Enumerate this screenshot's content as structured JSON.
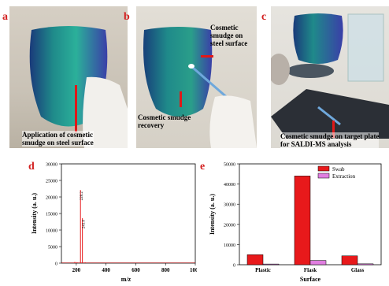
{
  "panels": {
    "a": {
      "label": "a",
      "caption_line1": "Application of cosmetic",
      "caption_line2": "smudge on steel surface"
    },
    "b": {
      "label": "b",
      "caption_top_line1": "Cosmetic",
      "caption_top_line2": "smudge on",
      "caption_top_line3": "steel surface",
      "caption_bottom_line1": "Cosmetic smudge",
      "caption_bottom_line2": "recovery"
    },
    "c": {
      "label": "c",
      "caption_line1": "Cosmetic smudge on target plate",
      "caption_line2": "for SALDI-MS analysis"
    },
    "d": {
      "label": "d"
    },
    "e": {
      "label": "e"
    }
  },
  "colors": {
    "label_red": "#d32020",
    "swab": "#e8191b",
    "extraction": "#e07ee0",
    "steel_a": "#1f8a8a",
    "steel_b": "#3a3fa8"
  },
  "chart_data": [
    {
      "type": "line",
      "panel": "d",
      "xlabel": "m/z",
      "ylabel": "Intensity (a. u.)",
      "xlim": [
        100,
        1000
      ],
      "ylim": [
        0,
        30000
      ],
      "xticks": [
        "200",
        "400",
        "600",
        "800",
        "1000"
      ],
      "yticks": [
        "0",
        "5000",
        "10000",
        "15000",
        "20000",
        "25000",
        "30000"
      ],
      "peaks": [
        {
          "x": 228.2,
          "y": 22100,
          "label": "228.2"
        },
        {
          "x": 241.0,
          "y": 13600,
          "label": "241.0"
        },
        {
          "x": 190,
          "y": 400
        },
        {
          "x": 205,
          "y": 300
        },
        {
          "x": 260,
          "y": 250
        }
      ],
      "series_color": "#e8191b"
    },
    {
      "type": "bar",
      "panel": "e",
      "xlabel": "Surface",
      "ylabel": "Intensity (a. u.)",
      "categories": [
        "Plastic",
        "Flask",
        "Glass"
      ],
      "ylim": [
        0,
        50000
      ],
      "yticks": [
        "0",
        "10000",
        "20000",
        "30000",
        "40000",
        "50000"
      ],
      "series": [
        {
          "name": "Swab",
          "values": [
            5000,
            44000,
            4400
          ],
          "color": "#e8191b"
        },
        {
          "name": "Extraction",
          "values": [
            350,
            2100,
            450
          ],
          "color": "#e07ee0"
        }
      ],
      "legend": "top-right"
    }
  ]
}
